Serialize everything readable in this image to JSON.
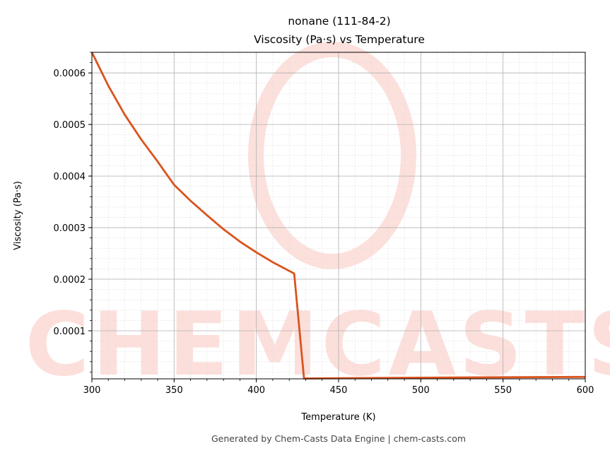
{
  "chart_data": {
    "type": "line",
    "title": "nonane (111-84-2)",
    "subtitle": "Viscosity (Pa·s) vs Temperature",
    "xlabel": "Temperature (K)",
    "ylabel": "Viscosity (Pa·s)",
    "xlim": [
      300,
      600
    ],
    "ylim": [
      6.8e-06,
      0.00064
    ],
    "xticks": [
      300,
      350,
      400,
      450,
      500,
      550,
      600
    ],
    "xtick_labels": [
      "300",
      "350",
      "400",
      "450",
      "500",
      "550",
      "600"
    ],
    "yticks": [
      0.0001,
      0.0002,
      0.0003,
      0.0004,
      0.0005,
      0.0006
    ],
    "ytick_labels": [
      "0.0001",
      "0.0002",
      "0.0003",
      "0.0004",
      "0.0005",
      "0.0006"
    ],
    "grid": true,
    "minor_grid": true,
    "line_color": "#d9541e",
    "series": [
      {
        "x": [
          300,
          310,
          320,
          330,
          340,
          350,
          360,
          370,
          380,
          390,
          400,
          410,
          423,
          429,
          450,
          500,
          550,
          600
        ],
        "values": [
          0.00064,
          0.000575,
          0.000519,
          0.000471,
          0.000428,
          0.000383,
          0.000352,
          0.000324,
          0.000297,
          0.000273,
          0.000252,
          0.000233,
          0.000211,
          7.5e-06,
          8e-06,
          9e-06,
          9.8e-06,
          1.05e-05
        ]
      }
    ],
    "watermark": "CHEMCASTS"
  },
  "footer": "Generated by Chem-Casts Data Engine | chem-casts.com"
}
